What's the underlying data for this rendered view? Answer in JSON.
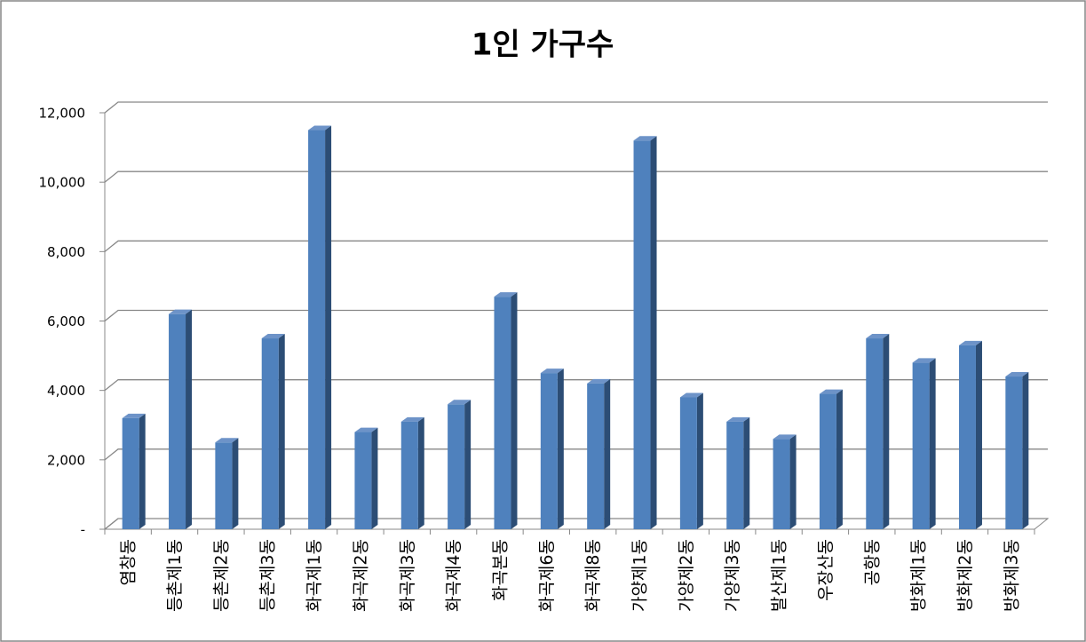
{
  "chart_data": {
    "type": "bar",
    "title": "1인 가구수",
    "categories": [
      "염창동",
      "등촌제1동",
      "등촌제2동",
      "등촌제3동",
      "화곡제1동",
      "화곡제2동",
      "화곡제3동",
      "화곡제4동",
      "화곡본동",
      "화곡제6동",
      "화곡제8동",
      "가양제1동",
      "가양제2동",
      "가양제3동",
      "발산제1동",
      "우장산동",
      "공항동",
      "방화제1동",
      "방화제2동",
      "방화제3동"
    ],
    "values": [
      3200,
      6200,
      2500,
      5500,
      11500,
      2800,
      3100,
      3600,
      6700,
      4500,
      4200,
      11200,
      3800,
      3100,
      2600,
      3900,
      5500,
      4800,
      5300,
      4400
    ],
    "color": "#4f81bd",
    "ylim": [
      0,
      12000
    ],
    "yticks": [
      {
        "value": 0,
        "label": "-"
      },
      {
        "value": 2000,
        "label": "2,000"
      },
      {
        "value": 4000,
        "label": "4,000"
      },
      {
        "value": 6000,
        "label": "6,000"
      },
      {
        "value": 8000,
        "label": "8,000"
      },
      {
        "value": 10000,
        "label": "10,000"
      },
      {
        "value": 12000,
        "label": "12,000"
      }
    ],
    "grid": true
  }
}
